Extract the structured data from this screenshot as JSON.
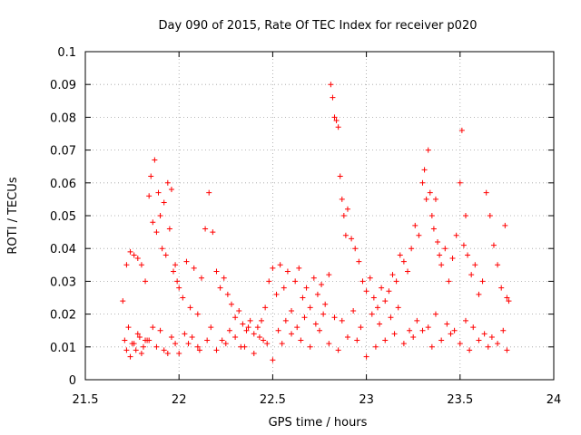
{
  "chart_data": {
    "type": "scatter",
    "title": "Day 090 of 2015, Rate Of TEC Index for receiver p020",
    "xlabel": "GPS time / hours",
    "ylabel": "ROTI / TECUs",
    "xlim": [
      21.5,
      24
    ],
    "ylim": [
      0,
      0.1
    ],
    "x_ticks": [
      21.5,
      22,
      22.5,
      23,
      23.5,
      24
    ],
    "x_tick_labels": [
      "21.5",
      "22",
      "22.5",
      "23",
      "23.5",
      "24"
    ],
    "y_ticks": [
      0,
      0.01,
      0.02,
      0.03,
      0.04,
      0.05,
      0.06,
      0.07,
      0.08,
      0.09,
      0.1
    ],
    "y_tick_labels": [
      "0",
      "0.01",
      "0.02",
      "0.03",
      "0.04",
      "0.05",
      "0.06",
      "0.07",
      "0.08",
      "0.09",
      "0.1"
    ],
    "grid": true,
    "marker": "+",
    "marker_color": "#ff0000",
    "series": [
      {
        "name": "ROTI",
        "x": [
          21.7,
          21.71,
          21.72,
          21.73,
          21.74,
          21.75,
          21.76,
          21.77,
          21.78,
          21.79,
          21.8,
          21.81,
          21.82,
          21.83,
          21.84,
          21.85,
          21.86,
          21.87,
          21.88,
          21.89,
          21.9,
          21.91,
          21.92,
          21.93,
          21.94,
          21.95,
          21.96,
          21.97,
          21.98,
          21.99,
          22.0,
          22.02,
          22.04,
          22.06,
          22.08,
          22.1,
          22.12,
          22.14,
          22.16,
          22.18,
          22.2,
          22.22,
          22.24,
          22.26,
          22.28,
          22.3,
          22.32,
          22.34,
          22.36,
          22.38,
          22.4,
          22.42,
          22.44,
          22.46,
          22.48,
          22.5,
          22.52,
          22.54,
          22.56,
          22.58,
          22.6,
          22.62,
          22.64,
          22.66,
          22.68,
          22.7,
          22.72,
          22.74,
          22.76,
          22.78,
          22.8,
          22.81,
          22.82,
          22.83,
          22.84,
          22.85,
          22.86,
          22.87,
          22.88,
          22.89,
          22.9,
          22.92,
          22.94,
          22.96,
          22.98,
          23.0,
          23.02,
          23.04,
          23.06,
          23.08,
          23.1,
          23.12,
          23.14,
          23.16,
          23.18,
          23.2,
          23.22,
          23.24,
          23.26,
          23.28,
          23.3,
          23.31,
          23.32,
          23.33,
          23.34,
          23.35,
          23.36,
          23.37,
          23.38,
          23.39,
          23.4,
          23.42,
          23.44,
          23.46,
          23.48,
          23.5,
          23.51,
          23.52,
          23.53,
          23.54,
          23.56,
          23.58,
          23.6,
          23.62,
          23.64,
          23.66,
          23.68,
          23.7,
          23.72,
          23.74,
          23.75,
          23.76,
          21.72,
          21.76,
          21.8,
          21.84,
          21.88,
          21.92,
          21.96,
          22.0,
          22.05,
          22.1,
          22.15,
          22.2,
          22.25,
          22.3,
          22.35,
          22.4,
          22.45,
          22.5,
          22.55,
          22.6,
          22.65,
          22.7,
          22.75,
          22.8,
          22.85,
          22.9,
          22.95,
          23.0,
          23.05,
          23.1,
          23.15,
          23.2,
          23.25,
          23.3,
          23.35,
          23.4,
          23.45,
          23.5,
          23.55,
          23.6,
          23.65,
          23.7,
          23.75,
          21.74,
          21.78,
          21.82,
          21.86,
          21.9,
          21.94,
          21.98,
          22.03,
          22.07,
          22.11,
          22.17,
          22.23,
          22.27,
          22.33,
          22.37,
          22.43,
          22.47,
          22.53,
          22.57,
          22.63,
          22.67,
          22.73,
          22.77,
          22.83,
          22.87,
          22.93,
          22.97,
          23.03,
          23.07,
          23.13,
          23.17,
          23.23,
          23.27,
          23.33,
          23.37,
          23.43,
          23.47,
          23.53,
          23.57,
          23.63,
          23.67,
          23.73
        ],
        "y": [
          0.024,
          0.012,
          0.035,
          0.016,
          0.039,
          0.011,
          0.038,
          0.009,
          0.037,
          0.013,
          0.035,
          0.01,
          0.03,
          0.012,
          0.056,
          0.062,
          0.048,
          0.067,
          0.045,
          0.057,
          0.05,
          0.04,
          0.054,
          0.038,
          0.06,
          0.046,
          0.058,
          0.033,
          0.035,
          0.03,
          0.028,
          0.025,
          0.036,
          0.022,
          0.034,
          0.02,
          0.031,
          0.046,
          0.057,
          0.045,
          0.033,
          0.028,
          0.031,
          0.026,
          0.023,
          0.019,
          0.021,
          0.017,
          0.015,
          0.018,
          0.014,
          0.016,
          0.018,
          0.022,
          0.03,
          0.034,
          0.026,
          0.035,
          0.028,
          0.033,
          0.021,
          0.03,
          0.034,
          0.025,
          0.028,
          0.022,
          0.031,
          0.026,
          0.029,
          0.023,
          0.032,
          0.09,
          0.086,
          0.08,
          0.079,
          0.077,
          0.062,
          0.055,
          0.05,
          0.044,
          0.052,
          0.043,
          0.04,
          0.036,
          0.03,
          0.027,
          0.031,
          0.025,
          0.022,
          0.028,
          0.024,
          0.027,
          0.032,
          0.03,
          0.038,
          0.036,
          0.033,
          0.04,
          0.047,
          0.044,
          0.06,
          0.064,
          0.055,
          0.07,
          0.057,
          0.05,
          0.046,
          0.055,
          0.042,
          0.038,
          0.035,
          0.04,
          0.03,
          0.037,
          0.044,
          0.06,
          0.076,
          0.041,
          0.05,
          0.038,
          0.032,
          0.035,
          0.026,
          0.03,
          0.057,
          0.05,
          0.041,
          0.035,
          0.028,
          0.047,
          0.025,
          0.024,
          0.009,
          0.011,
          0.008,
          0.012,
          0.01,
          0.009,
          0.013,
          0.008,
          0.011,
          0.01,
          0.012,
          0.009,
          0.011,
          0.013,
          0.01,
          0.008,
          0.012,
          0.006,
          0.011,
          0.014,
          0.012,
          0.01,
          0.015,
          0.011,
          0.009,
          0.013,
          0.012,
          0.007,
          0.01,
          0.012,
          0.014,
          0.011,
          0.013,
          0.015,
          0.01,
          0.012,
          0.014,
          0.011,
          0.009,
          0.012,
          0.01,
          0.011,
          0.009,
          0.007,
          0.014,
          0.012,
          0.016,
          0.015,
          0.008,
          0.011,
          0.014,
          0.013,
          0.009,
          0.016,
          0.012,
          0.015,
          0.01,
          0.016,
          0.013,
          0.011,
          0.015,
          0.018,
          0.016,
          0.019,
          0.017,
          0.02,
          0.019,
          0.018,
          0.021,
          0.016,
          0.02,
          0.017,
          0.019,
          0.022,
          0.015,
          0.018,
          0.016,
          0.02,
          0.017,
          0.015,
          0.018,
          0.016,
          0.014,
          0.013,
          0.015
        ]
      }
    ]
  }
}
